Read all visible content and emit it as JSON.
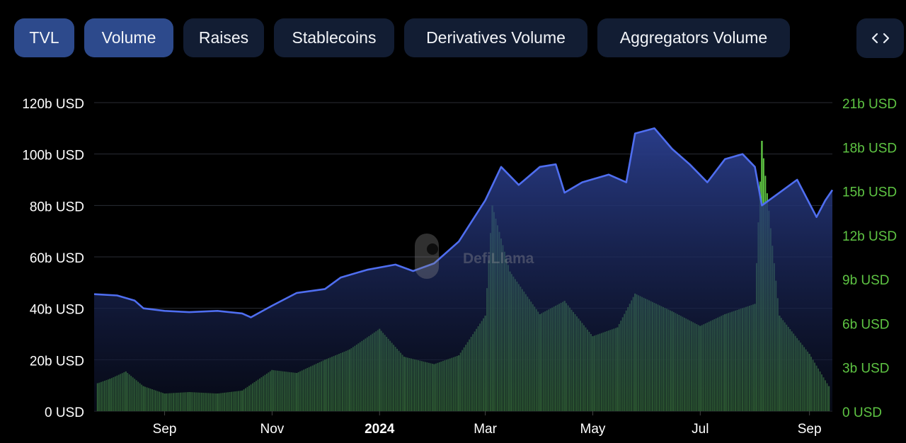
{
  "tabs": [
    {
      "label": "TVL",
      "active": true
    },
    {
      "label": "Volume",
      "active": true
    },
    {
      "label": "Raises",
      "active": false
    },
    {
      "label": "Stablecoins",
      "active": false
    },
    {
      "label": "Derivatives Volume",
      "active": false
    },
    {
      "label": "Aggregators Volume",
      "active": false
    }
  ],
  "expand_icon": "code-brackets-icon",
  "watermark": "DefiLlama",
  "colors": {
    "tvl_line": "#4f6ef0",
    "tvl_fill_top": "#2b3f8f",
    "volume_bar": "#5ec443",
    "left_axis_text": "#ffffff",
    "right_axis_text": "#5ec443",
    "tab_bg": "#121d33",
    "tab_active_bg": "#2d4a8c"
  },
  "chart_data": {
    "type": "area",
    "grid": true,
    "legend": "none",
    "x_ticks": [
      "Sep",
      "Nov",
      "2024",
      "Mar",
      "May",
      "Jul",
      "Sep"
    ],
    "x_tick_dates": [
      "2023-09-01",
      "2023-11-01",
      "2024-01-01",
      "2024-03-01",
      "2024-05-01",
      "2024-07-01",
      "2024-09-01"
    ],
    "x_range": [
      "2023-07-23",
      "2024-09-14"
    ],
    "left_axis": {
      "ticks": [
        "0 USD",
        "20b USD",
        "40b USD",
        "60b USD",
        "80b USD",
        "100b USD",
        "120b USD"
      ],
      "ylim": [
        0,
        120
      ]
    },
    "right_axis": {
      "ticks": [
        "0 USD",
        "3b USD",
        "6b USD",
        "9b USD",
        "12b USD",
        "15b USD",
        "18b USD",
        "21b USD"
      ],
      "ylim": [
        0,
        21
      ]
    },
    "series": [
      {
        "axis": "left",
        "unit": "b USD",
        "points": [
          [
            "2023-07-23",
            45.5
          ],
          [
            "2023-08-05",
            45.0
          ],
          [
            "2023-08-15",
            43.0
          ],
          [
            "2023-08-20",
            40.0
          ],
          [
            "2023-09-01",
            39.0
          ],
          [
            "2023-09-15",
            38.5
          ],
          [
            "2023-10-01",
            39.0
          ],
          [
            "2023-10-15",
            38.0
          ],
          [
            "2023-10-20",
            36.5
          ],
          [
            "2023-11-01",
            41.0
          ],
          [
            "2023-11-15",
            46.0
          ],
          [
            "2023-12-01",
            47.5
          ],
          [
            "2023-12-10",
            52.0
          ],
          [
            "2023-12-25",
            55.0
          ],
          [
            "2024-01-10",
            57.0
          ],
          [
            "2024-01-20",
            54.5
          ],
          [
            "2024-02-01",
            57.5
          ],
          [
            "2024-02-15",
            66.0
          ],
          [
            "2024-03-01",
            82.0
          ],
          [
            "2024-03-10",
            95.0
          ],
          [
            "2024-03-20",
            88.0
          ],
          [
            "2024-04-01",
            95.0
          ],
          [
            "2024-04-10",
            96.0
          ],
          [
            "2024-04-15",
            85.0
          ],
          [
            "2024-04-25",
            89.0
          ],
          [
            "2024-05-10",
            92.0
          ],
          [
            "2024-05-20",
            89.0
          ],
          [
            "2024-05-25",
            108.0
          ],
          [
            "2024-06-05",
            110.0
          ],
          [
            "2024-06-15",
            102.0
          ],
          [
            "2024-06-25",
            96.0
          ],
          [
            "2024-07-05",
            89.0
          ],
          [
            "2024-07-15",
            98.0
          ],
          [
            "2024-07-25",
            100.0
          ],
          [
            "2024-08-01",
            95.0
          ],
          [
            "2024-08-05",
            80.0
          ],
          [
            "2024-08-15",
            85.0
          ],
          [
            "2024-08-25",
            90.0
          ],
          [
            "2024-09-05",
            75.5
          ],
          [
            "2024-09-10",
            82.0
          ],
          [
            "2024-09-14",
            86.0
          ]
        ]
      },
      {
        "axis": "right",
        "unit": "b USD",
        "type": "bar",
        "points": [
          [
            "2023-07-25",
            1.9
          ],
          [
            "2023-08-01",
            2.2
          ],
          [
            "2023-08-10",
            2.7
          ],
          [
            "2023-08-20",
            1.7
          ],
          [
            "2023-09-01",
            1.2
          ],
          [
            "2023-09-15",
            1.3
          ],
          [
            "2023-10-01",
            1.2
          ],
          [
            "2023-10-15",
            1.4
          ],
          [
            "2023-11-01",
            2.8
          ],
          [
            "2023-11-15",
            2.6
          ],
          [
            "2023-12-01",
            3.5
          ],
          [
            "2023-12-15",
            4.2
          ],
          [
            "2024-01-01",
            5.6
          ],
          [
            "2024-01-15",
            3.7
          ],
          [
            "2024-02-01",
            3.2
          ],
          [
            "2024-02-15",
            3.8
          ],
          [
            "2024-03-01",
            6.5
          ],
          [
            "2024-03-05",
            14.0
          ],
          [
            "2024-03-15",
            9.5
          ],
          [
            "2024-04-01",
            6.6
          ],
          [
            "2024-04-15",
            7.5
          ],
          [
            "2024-05-01",
            5.1
          ],
          [
            "2024-05-15",
            5.7
          ],
          [
            "2024-05-25",
            8.0
          ],
          [
            "2024-06-15",
            6.8
          ],
          [
            "2024-07-01",
            5.8
          ],
          [
            "2024-07-15",
            6.6
          ],
          [
            "2024-08-01",
            7.3
          ],
          [
            "2024-08-05",
            18.4
          ],
          [
            "2024-08-15",
            6.5
          ],
          [
            "2024-09-01",
            3.9
          ],
          [
            "2024-09-12",
            1.7
          ]
        ]
      }
    ]
  }
}
